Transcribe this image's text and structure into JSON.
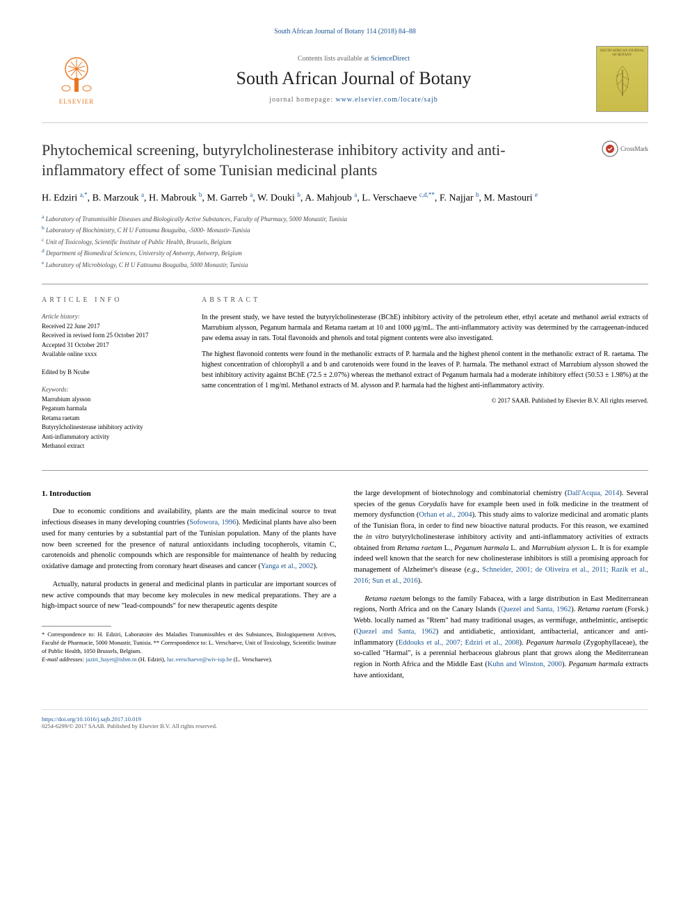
{
  "header": {
    "citation": "South African Journal of Botany 114 (2018) 84–88",
    "contents_prefix": "Contents lists available at ",
    "contents_link": "ScienceDirect",
    "journal_title": "South African Journal of Botany",
    "homepage_prefix": "journal homepage: ",
    "homepage_url": "www.elsevier.com/locate/sajb",
    "elsevier_name": "ELSEVIER",
    "cover_text": "SOUTH AFRICAN JOURNAL OF BOTANY",
    "crossmark": "CrossMark"
  },
  "article": {
    "title": "Phytochemical screening, butyrylcholinesterase inhibitory activity and anti-inflammatory effect of some Tunisian medicinal plants",
    "authors_html": "H. Edziri <sup><a>a,</a>*</sup>, B. Marzouk <sup><a>a</a></sup>, H. Mabrouk <sup><a>b</a></sup>, M. Garreb <sup><a>a</a></sup>, W. Douki <sup><a>b</a></sup>, A. Mahjoub <sup><a>a</a></sup>, L. Verschaeve <sup><a>c,d,</a>**</sup>, F. Najjar <sup><a>b</a></sup>, M. Mastouri <sup><a>e</a></sup>"
  },
  "affiliations": [
    {
      "sup": "a",
      "text": "Laboratory of Transmissible Diseases and Biologically Active Substances, Faculty of Pharmacy, 5000 Monastir, Tunisia"
    },
    {
      "sup": "b",
      "text": "Laboratory of Biochimistry, C H U Fattouma Bouguiba, -5000- Monastir-Tunisia"
    },
    {
      "sup": "c",
      "text": "Unit of Toxicology, Scientific Institute of Public Health, Brussels, Belgium"
    },
    {
      "sup": "d",
      "text": "Department of Biomedical Sciences, University of Antwerp, Antwerp, Belgium"
    },
    {
      "sup": "e",
      "text": "Laboratory of Microbiology, C H U Fattouma Bouguiba, 5000 Monastir, Tunisia"
    }
  ],
  "info": {
    "label": "ARTICLE INFO",
    "history_title": "Article history:",
    "history": [
      "Received 22 June 2017",
      "Received in revised form 25 October 2017",
      "Accepted 31 October 2017",
      "Available online xxxx"
    ],
    "edited": "Edited by B Ncube",
    "keywords_title": "Keywords:",
    "keywords": [
      "Marrubium alysson",
      "Peganum harmala",
      "Retama raetam",
      "Butyrylcholinesterase inhibitory activity",
      "Anti-inflammatory activity",
      "Methanol extract"
    ]
  },
  "abstract": {
    "label": "ABSTRACT",
    "p1": "In the present study, we have tested the butyrylcholinesterase (BChE) inhibitory activity of the petroleum ether, ethyl acetate and methanol aerial extracts of Marrubium alysson, Peganum harmala and Retama raetam at 10 and 1000 μg/mL. The anti-inflammatory activity was determined by the carrageenan-induced paw edema assay in rats. Total flavonoids and phenols and total pigment contents were also investigated.",
    "p2": "The highest flavonoid contents were found in the methanolic extracts of P. harmala and the highest phenol content in the methanolic extract of R. raetama. The highest concentration of chlorophyll a and b and carotenoids were found in the leaves of P. harmala. The methanol extract of Marrubium alysson showed the best inhibitory activity against BChE (72.5 ± 2.07%) whereas the methanol extract of Peganum harmala had a moderate inhibitory effect (50.53 ± 1.98%) at the same concentration of 1 mg/ml. Methanol extracts of M. alysson and P. harmala had the highest anti-inflammatory activity.",
    "copyright": "© 2017 SAAB. Published by Elsevier B.V. All rights reserved."
  },
  "body": {
    "intro_heading": "1. Introduction",
    "left": [
      "Due to economic conditions and availability, plants are the main medicinal source to treat infectious diseases in many developing countries (<span class='ref-link'>Sofowora, 1996</span>). Medicinal plants have also been used for many centuries by a substantial part of the Tunisian population. Many of the plants have now been screened for the presence of natural antioxidants including tocopherols, vitamin C, carotenoids and phenolic compounds which are responsible for maintenance of health by reducing oxidative damage and protecting from coronary heart diseases and cancer (<span class='ref-link'>Yanga et al., 2002</span>).",
      "Actually, natural products in general and medicinal plants in particular are important sources of new active compounds that may become key molecules in new medical preparations. They are a high-impact source of new \"lead-compounds\" for new therapeutic agents despite"
    ],
    "right": [
      "the large development of biotechnology and combinatorial chemistry (<span class='ref-link'>Dall'Acqua, 2014</span>). Several species of the genus <span class='italic'>Corydalis</span> have for example been used in folk medicine in the treatment of memory dysfunction (<span class='ref-link'>Orhan et al., 2004</span>). This study aims to valorize medicinal and aromatic plants of the Tunisian flora, in order to find new bioactive natural products. For this reason, we examined the <span class='italic'>in vitro</span> butyrylcholinesterase inhibitory activity and anti-inflammatory activities of extracts obtained from <span class='italic'>Retama raetam</span> L., <span class='italic'>Peganum harmala</span> L. and <span class='italic'>Marrubium alysson</span> L. It is for example indeed well known that the search for new cholinesterase inhibitors is still a promising approach for management of Alzheimer's disease (<span class='italic'>e.g.</span>, <span class='ref-link'>Schneider, 2001; de Oliveira et al., 2011; Razik et al., 2016; Sun et al., 2016</span>).",
      "<span class='italic'>Retama raetam</span> belongs to the family Fabacea, with a large distribution in East Mediterranean regions, North Africa and on the Canary Islands (<span class='ref-link'>Quezel and Santa, 1962</span>). <span class='italic'>Retama raetam</span> (Forsk.) Webb. locally named as \"Rtem\" had many traditional usages, as vermifuge, anthelmintic, antiseptic (<span class='ref-link'>Quezel and Santa, 1962</span>) and antidiabetic, antioxidant, antibacterial, anticancer and anti-inflammatory (<span class='ref-link'>Eddouks et al., 2007; Edziri et al., 2008</span>). <span class='italic'>Peganum harmala</span> (Zygophyllaceae), the so-called \"Harmal\", is a perennial herbaceous glabrous plant that grows along the Mediterranean region in North Africa and the Middle East (<span class='ref-link'>Kuhn and Winston, 2000</span>). <span class='italic'>Peganum harmala</span> extracts have antioxidant,"
    ]
  },
  "footnotes": {
    "star1": "* Correspondence to: H. Edziri, Laboratoire des Maladies Transmissibles et des Substances, Biologiquement Actives, Faculté de Pharmacie, 5000 Monastir, Tunisia. ** Correspondence to: L. Verschaeve, Unit of Toxicology, Scientific Institute of Public Health, 1050 Brussels, Belgium.",
    "email_label": "E-mail addresses: ",
    "email1": "jaziri_hayet@isbm.tn",
    "email1_name": " (H. Edziri), ",
    "email2": "luc.verschaeve@wiv-isp.be",
    "email2_name": " (L. Verschaeve)."
  },
  "footer": {
    "doi": "https://doi.org/10.1016/j.sajb.2017.10.019",
    "issn": "0254-6299/© 2017 SAAB. Published by Elsevier B.V. All rights reserved."
  },
  "colors": {
    "link": "#1a5490",
    "elsevier_orange": "#e87722",
    "text": "#000000",
    "muted": "#666666",
    "border": "#999999",
    "cover_bg": "#d4c85a"
  }
}
